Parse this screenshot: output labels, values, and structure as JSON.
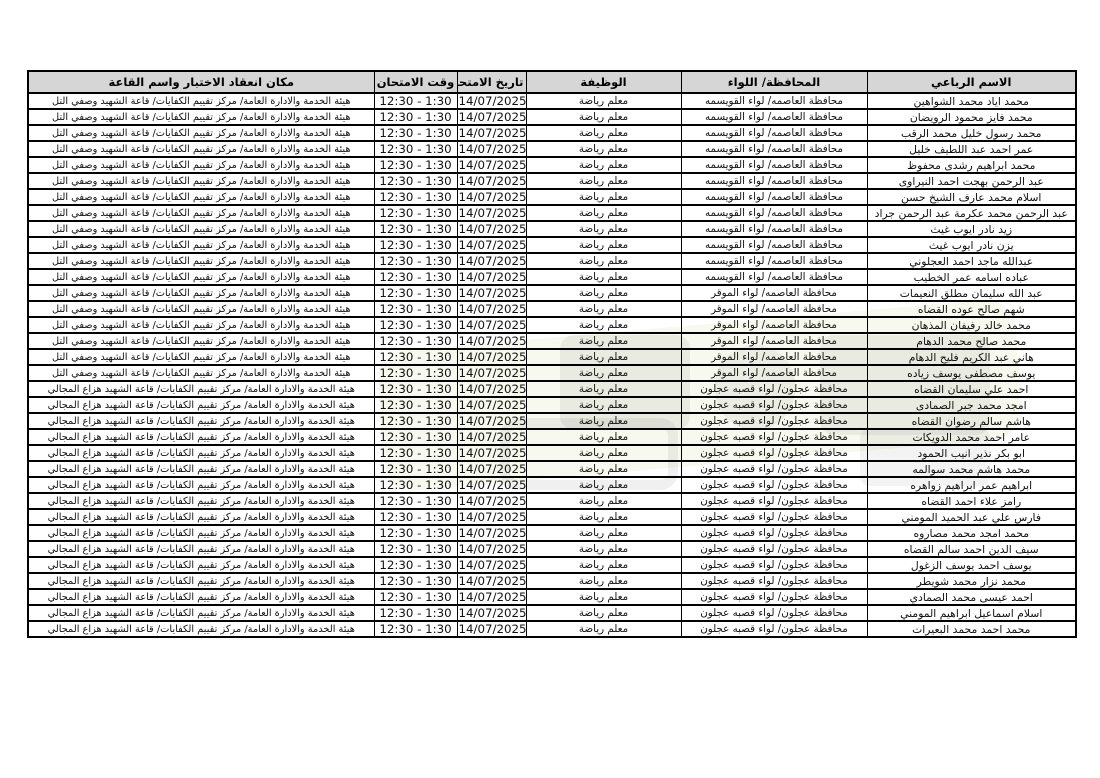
{
  "styles": {
    "header_bg": "#d6d6d6",
    "border_color": "#000000",
    "text_color": "#111111",
    "page_bg": "#ffffff",
    "watermark_gray": "#7d7d7d",
    "watermark_green": "#cddc96"
  },
  "table": {
    "headers": {
      "name": "الاسم الرباعي",
      "district": "المحافظة/ اللواء",
      "job": "الوظيفة",
      "exam_date": "تاريخ الامتحان",
      "exam_time": "وقت الامتحان",
      "location": "مكان انعقاد الاختبار واسم القاعة"
    },
    "rows": [
      {
        "name": "محمد اياد محمد الشواهين",
        "district": "محافظة العاصمه/ لواء القويسمه",
        "job": "معلم رياضة",
        "date": "14/07/2025",
        "time": "12:30 - 1:30",
        "location": "هيئة الخدمة والادارة العامة/ مركز تقييم الكفايات/ قاعة الشهيد وصفي التل"
      },
      {
        "name": "محمد فايز محمود الرويضان",
        "district": "محافظة العاصمه/ لواء القويسمه",
        "job": "معلم رياضة",
        "date": "14/07/2025",
        "time": "12:30 - 1:30",
        "location": "هيئة الخدمة والادارة العامة/ مركز تقييم الكفايات/ قاعة الشهيد وصفي التل"
      },
      {
        "name": "محمد رسول خليل محمد الرقب",
        "district": "محافظة العاصمه/ لواء القويسمه",
        "job": "معلم رياضة",
        "date": "14/07/2025",
        "time": "12:30 - 1:30",
        "location": "هيئة الخدمة والادارة العامة/ مركز تقييم الكفايات/ قاعة الشهيد وصفي التل"
      },
      {
        "name": "عمر احمد عبد اللطيف خليل",
        "district": "محافظة العاصمه/ لواء القويسمه",
        "job": "معلم رياضة",
        "date": "14/07/2025",
        "time": "12:30 - 1:30",
        "location": "هيئة الخدمة والادارة العامة/ مركز تقييم الكفايات/ قاعة الشهيد وصفي التل"
      },
      {
        "name": "محمد ابراهيم رشدى محفوظ",
        "district": "محافظة العاصمه/ لواء القويسمه",
        "job": "معلم رياضة",
        "date": "14/07/2025",
        "time": "12:30 - 1:30",
        "location": "هيئة الخدمة والادارة العامة/ مركز تقييم الكفايات/ قاعة الشهيد وصفي التل"
      },
      {
        "name": "عبد الرحمن بهجت احمد النيراوى",
        "district": "محافظة العاصمه/ لواء القويسمه",
        "job": "معلم رياضة",
        "date": "14/07/2025",
        "time": "12:30 - 1:30",
        "location": "هيئة الخدمة والادارة العامة/ مركز تقييم الكفايات/ قاعة الشهيد وصفي التل"
      },
      {
        "name": "اسلام محمد عارف الشيخ حسن",
        "district": "محافظة العاصمه/ لواء القويسمه",
        "job": "معلم رياضة",
        "date": "14/07/2025",
        "time": "12:30 - 1:30",
        "location": "هيئة الخدمة والادارة العامة/ مركز تقييم الكفايات/ قاعة الشهيد وصفي التل"
      },
      {
        "name": "عبد الرحمن محمد عكرمة عبد الرحمن جراد",
        "district": "محافظة العاصمه/ لواء القويسمه",
        "job": "معلم رياضة",
        "date": "14/07/2025",
        "time": "12:30 - 1:30",
        "location": "هيئة الخدمة والادارة العامة/ مركز تقييم الكفايات/ قاعة الشهيد وصفي التل"
      },
      {
        "name": "زيد نادر ايوب غيث",
        "district": "محافظة العاصمه/ لواء القويسمه",
        "job": "معلم رياضة",
        "date": "14/07/2025",
        "time": "12:30 - 1:30",
        "location": "هيئة الخدمة والادارة العامة/ مركز تقييم الكفايات/ قاعة الشهيد وصفي التل"
      },
      {
        "name": "يزن نادر ايوب غيث",
        "district": "محافظة العاصمه/ لواء القويسمه",
        "job": "معلم رياضة",
        "date": "14/07/2025",
        "time": "12:30 - 1:30",
        "location": "هيئة الخدمة والادارة العامة/ مركز تقييم الكفايات/ قاعة الشهيد وصفي التل"
      },
      {
        "name": "عبدالله ماجد احمد العجلوني",
        "district": "محافظة العاصمه/ لواء القويسمه",
        "job": "معلم رياضة",
        "date": "14/07/2025",
        "time": "12:30 - 1:30",
        "location": "هيئة الخدمة والادارة العامة/ مركز تقييم الكفايات/ قاعة الشهيد وصفي التل"
      },
      {
        "name": "عباده اسامه عمر الخطيب",
        "district": "محافظة العاصمه/ لواء القويسمه",
        "job": "معلم رياضة",
        "date": "14/07/2025",
        "time": "12:30 - 1:30",
        "location": "هيئة الخدمة والادارة العامة/ مركز تقييم الكفايات/ قاعة الشهيد وصفي التل"
      },
      {
        "name": "عبد الله سليمان مطلق النعيمات",
        "district": "محافظة العاصمه/ لواء الموقر",
        "job": "معلم رياضة",
        "date": "14/07/2025",
        "time": "12:30 - 1:30",
        "location": "هيئة الخدمة والادارة العامة/ مركز تقييم الكفايات/ قاعة الشهيد وصفي التل"
      },
      {
        "name": "شهم صالح عوده القضاه",
        "district": "محافظة العاصمه/ لواء الموقر",
        "job": "معلم رياضة",
        "date": "14/07/2025",
        "time": "12:30 - 1:30",
        "location": "هيئة الخدمة والادارة العامة/ مركز تقييم الكفايات/ قاعة الشهيد وصفي التل"
      },
      {
        "name": "محمد خالد رفيفان المذهان",
        "district": "محافظة العاصمه/ لواء الموقر",
        "job": "معلم رياضة",
        "date": "14/07/2025",
        "time": "12:30 - 1:30",
        "location": "هيئة الخدمة والادارة العامة/ مركز تقييم الكفايات/ قاعة الشهيد وصفي التل"
      },
      {
        "name": "محمد صالح محمد الدهام",
        "district": "محافظة العاصمه/ لواء الموقر",
        "job": "معلم رياضة",
        "date": "14/07/2025",
        "time": "12:30 - 1:30",
        "location": "هيئة الخدمة والادارة العامة/ مركز تقييم الكفايات/ قاعة الشهيد وصفي التل"
      },
      {
        "name": "هاني عبد الكريم فليح الدهام",
        "district": "محافظة العاصمه/ لواء الموقر",
        "job": "معلم رياضة",
        "date": "14/07/2025",
        "time": "12:30 - 1:30",
        "location": "هيئة الخدمة والادارة العامة/ مركز تقييم الكفايات/ قاعة الشهيد وصفي التل"
      },
      {
        "name": "يوسف مصطفى يوسف زياده",
        "district": "محافظة العاصمه/ لواء الموقر",
        "job": "معلم رياضة",
        "date": "14/07/2025",
        "time": "12:30 - 1:30",
        "location": "هيئة الخدمة والادارة العامة/ مركز تقييم الكفايات/ قاعة الشهيد وصفي التل"
      },
      {
        "name": "احمد علي سليمان القضاه",
        "district": "محافظة عجلون/ لواء قصبه عجلون",
        "job": "معلم رياضة",
        "date": "14/07/2025",
        "time": "12:30 - 1:30",
        "location": "هيئة الخدمة والادارة العامة/ مركز تقييم الكفايات/ قاعة الشهيد هزاع المجالي"
      },
      {
        "name": "امجد محمد جبر الصمادى",
        "district": "محافظة عجلون/ لواء قصبه عجلون",
        "job": "معلم رياضة",
        "date": "14/07/2025",
        "time": "12:30 - 1:30",
        "location": "هيئة الخدمة والادارة العامة/ مركز تقييم الكفايات/ قاعة الشهيد هزاع المجالي"
      },
      {
        "name": "هاشم سالم رضوان القضاه",
        "district": "محافظة عجلون/ لواء قصبه عجلون",
        "job": "معلم رياضة",
        "date": "14/07/2025",
        "time": "12:30 - 1:30",
        "location": "هيئة الخدمة والادارة العامة/ مركز تقييم الكفايات/ قاعة الشهيد هزاع المجالي"
      },
      {
        "name": "عامر احمد محمد الدويكات",
        "district": "محافظة عجلون/ لواء قصبه عجلون",
        "job": "معلم رياضة",
        "date": "14/07/2025",
        "time": "12:30 - 1:30",
        "location": "هيئة الخدمة والادارة العامة/ مركز تقييم الكفايات/ قاعة الشهيد هزاع المجالي"
      },
      {
        "name": "ابو بكر نذير انيب الحمود",
        "district": "محافظة عجلون/ لواء قصبه عجلون",
        "job": "معلم رياضة",
        "date": "14/07/2025",
        "time": "12:30 - 1:30",
        "location": "هيئة الخدمة والادارة العامة/ مركز تقييم الكفايات/ قاعة الشهيد هزاع المجالي"
      },
      {
        "name": "محمد هاشم محمد سوالمه",
        "district": "محافظة عجلون/ لواء قصبه عجلون",
        "job": "معلم رياضة",
        "date": "14/07/2025",
        "time": "12:30 - 1:30",
        "location": "هيئة الخدمة والادارة العامة/ مركز تقييم الكفايات/ قاعة الشهيد هزاع المجالي"
      },
      {
        "name": "ابراهيم عمر ابراهيم زواهره",
        "district": "محافظة عجلون/ لواء قصبه عجلون",
        "job": "معلم رياضة",
        "date": "14/07/2025",
        "time": "12:30 - 1:30",
        "location": "هيئة الخدمة والادارة العامة/ مركز تقييم الكفايات/ قاعة الشهيد هزاع المجالي"
      },
      {
        "name": "رامز علاء احمد القضاه",
        "district": "محافظة عجلون/ لواء قصبه عجلون",
        "job": "معلم رياضة",
        "date": "14/07/2025",
        "time": "12:30 - 1:30",
        "location": "هيئة الخدمة والادارة العامة/ مركز تقييم الكفايات/ قاعة الشهيد هزاع المجالي"
      },
      {
        "name": "فارس علي عبد الحميد المومني",
        "district": "محافظة عجلون/ لواء قصبه عجلون",
        "job": "معلم رياضة",
        "date": "14/07/2025",
        "time": "12:30 - 1:30",
        "location": "هيئة الخدمة والادارة العامة/ مركز تقييم الكفايات/ قاعة الشهيد هزاع المجالي"
      },
      {
        "name": "محمد امجد محمد مصاروه",
        "district": "محافظة عجلون/ لواء قصبه عجلون",
        "job": "معلم رياضة",
        "date": "14/07/2025",
        "time": "12:30 - 1:30",
        "location": "هيئة الخدمة والادارة العامة/ مركز تقييم الكفايات/ قاعة الشهيد هزاع المجالي"
      },
      {
        "name": "سيف الدين احمد سالم القضاه",
        "district": "محافظة عجلون/ لواء قصبه عجلون",
        "job": "معلم رياضة",
        "date": "14/07/2025",
        "time": "12:30 - 1:30",
        "location": "هيئة الخدمة والادارة العامة/ مركز تقييم الكفايات/ قاعة الشهيد هزاع المجالي"
      },
      {
        "name": "يوسف احمد يوسف الزغول",
        "district": "محافظة عجلون/ لواء قصبه عجلون",
        "job": "معلم رياضة",
        "date": "14/07/2025",
        "time": "12:30 - 1:30",
        "location": "هيئة الخدمة والادارة العامة/ مركز تقييم الكفايات/ قاعة الشهيد هزاع المجالي"
      },
      {
        "name": "محمد نزار محمد شويطر",
        "district": "محافظة عجلون/ لواء قصبه عجلون",
        "job": "معلم رياضة",
        "date": "14/07/2025",
        "time": "12:30 - 1:30",
        "location": "هيئة الخدمة والادارة العامة/ مركز تقييم الكفايات/ قاعة الشهيد هزاع المجالي"
      },
      {
        "name": "احمد عيسى محمد الصمادي",
        "district": "محافظة عجلون/ لواء قصبه عجلون",
        "job": "معلم رياضة",
        "date": "14/07/2025",
        "time": "12:30 - 1:30",
        "location": "هيئة الخدمة والادارة العامة/ مركز تقييم الكفايات/ قاعة الشهيد هزاع المجالي"
      },
      {
        "name": "اسلام اسماعيل ابراهيم المومني",
        "district": "محافظة عجلون/ لواء قصبه عجلون",
        "job": "معلم رياضة",
        "date": "14/07/2025",
        "time": "12:30 - 1:30",
        "location": "هيئة الخدمة والادارة العامة/ مركز تقييم الكفايات/ قاعة الشهيد هزاع المجالي"
      },
      {
        "name": "محمد احمد محمد البعيرات",
        "district": "محافظة عجلون/ لواء قصبه عجلون",
        "job": "معلم رياضة",
        "date": "14/07/2025",
        "time": "12:30 - 1:30",
        "location": "هيئة الخدمة والادارة العامة/ مركز تقييم الكفايات/ قاعة الشهيد هزاع المجالي"
      }
    ]
  }
}
